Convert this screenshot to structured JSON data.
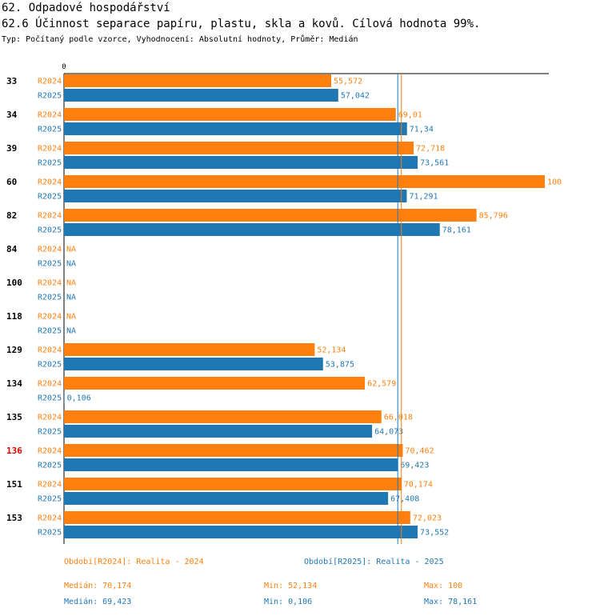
{
  "header": {
    "title": "62. Odpadové hospodářství",
    "subtitle": "62.6 Účinnost separace papíru, plastu, skla a kovů. Cílová hodnota 99%.",
    "meta": "Typ: Počítaný podle vzorce, Vyhodnocení: Absolutní hodnoty, Průměr: Medián"
  },
  "colors": {
    "r2024": "#ff7f0e",
    "r2025": "#1f77b4",
    "highlight": "#e00000"
  },
  "chart_data": {
    "type": "bar",
    "orientation": "horizontal",
    "axis_zero_label": "0",
    "xlim": [
      0,
      100
    ],
    "series_names": [
      "R2024",
      "R2025"
    ],
    "categories": [
      "33",
      "34",
      "39",
      "60",
      "82",
      "84",
      "100",
      "118",
      "129",
      "134",
      "135",
      "136",
      "151",
      "153"
    ],
    "highlight_category": "136",
    "series": [
      {
        "name": "R2024",
        "values": [
          55.572,
          69.01,
          72.718,
          100,
          85.796,
          null,
          null,
          null,
          52.134,
          62.579,
          66.018,
          70.462,
          70.174,
          72.023
        ],
        "labels": [
          "55,572",
          "69,01",
          "72,718",
          "100",
          "85,796",
          "NA",
          "NA",
          "NA",
          "52,134",
          "62,579",
          "66,018",
          "70,462",
          "70,174",
          "72,023"
        ]
      },
      {
        "name": "R2025",
        "values": [
          57.042,
          71.34,
          73.561,
          71.291,
          78.161,
          null,
          null,
          null,
          53.875,
          0.106,
          64.073,
          69.423,
          67.408,
          73.552
        ],
        "labels": [
          "57,042",
          "71,34",
          "73,561",
          "71,291",
          "78,161",
          "NA",
          "NA",
          "NA",
          "53,875",
          "0,106",
          "64,073",
          "69,423",
          "67,408",
          "73,552"
        ]
      }
    ],
    "median_lines": {
      "R2024": 70.174,
      "R2025": 69.423
    }
  },
  "legend": {
    "r2024_period": "Období[R2024]: Realita - 2024",
    "r2025_period": "Období[R2025]: Realita - 2025",
    "r2024_median": "Medián: 70,174",
    "r2024_min": "Min: 52,134",
    "r2024_max": "Max: 100",
    "r2025_median": "Medián: 69,423",
    "r2025_min": "Min: 0,106",
    "r2025_max": "Max: 78,161"
  }
}
